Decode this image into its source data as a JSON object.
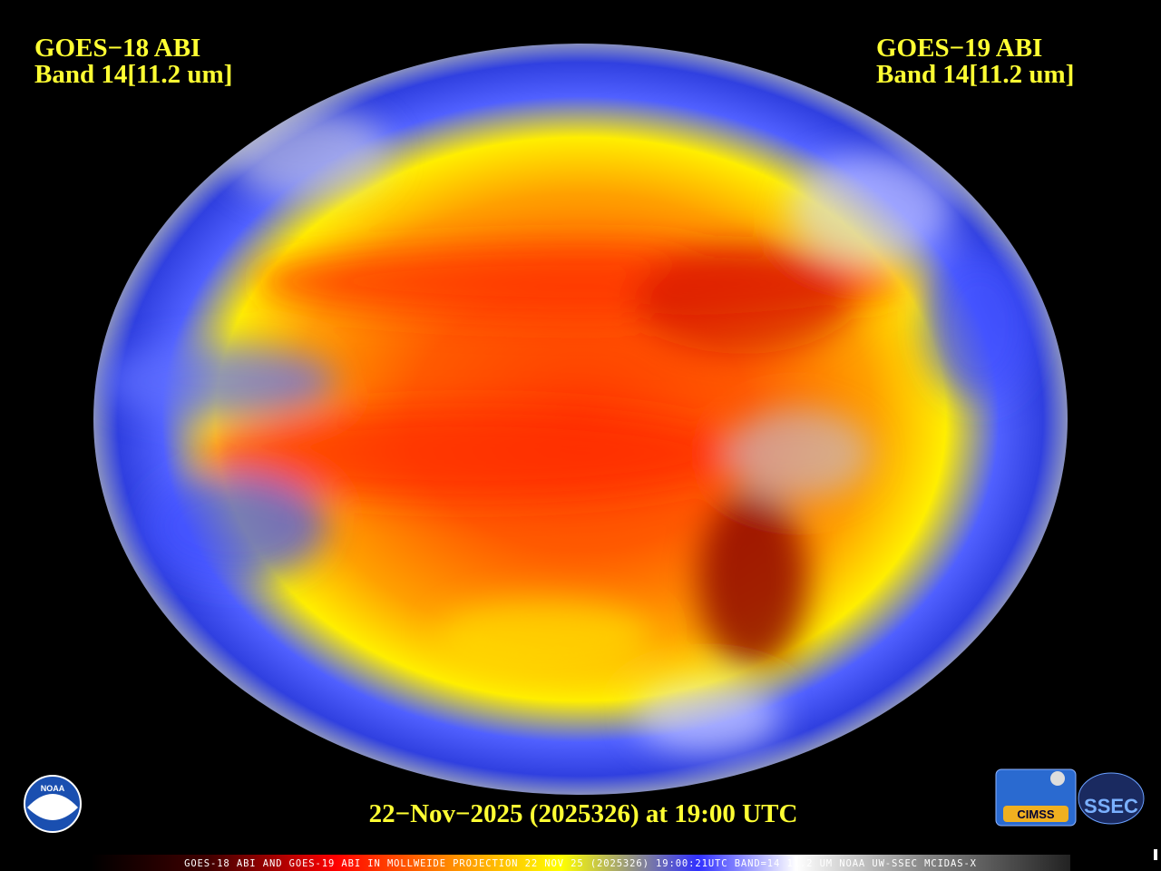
{
  "header": {
    "left": {
      "satellite": "GOES−18 ABI",
      "band": "Band 14[11.2 um]"
    },
    "right": {
      "satellite": "GOES−19 ABI",
      "band": "Band 14[11.2 um]"
    }
  },
  "timestamp": "22−Nov−2025 (2025326) at 19:00 UTC",
  "footer": "GOES-18 ABI AND GOES-19 ABI IN MOLLWEIDE PROJECTION 22 NOV 25 (2025326) 19:00:21UTC BAND=14 11.2 UM NOAA UW-SSEC MCIDAS-X",
  "logos": {
    "noaa": "NOAA",
    "cimss": "CIMSS",
    "ssec": "SSEC"
  }
}
